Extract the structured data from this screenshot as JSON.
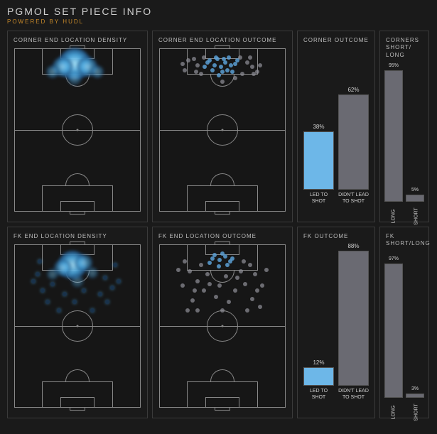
{
  "header": {
    "title": "PGMOL SET PIECE INFO",
    "subtitle": "POWERED BY HUDL"
  },
  "colors": {
    "page_bg": "#1a1a1a",
    "panel_border": "#3a3a3a",
    "pitch_line": "#888888",
    "text": "#cccccc",
    "accent": "#c88a2a",
    "bar_blue": "#6db7e8",
    "bar_grey": "#6a6a72",
    "glow_core": "#aee8ff",
    "glow_mid": "#4aa8e0",
    "glow_edge": "#1d4a78",
    "dot_blue": "#5a9fd4",
    "dot_grey": "#8a8a92"
  },
  "corner_density": {
    "title": "CORNER END LOCATION DENSITY",
    "type": "heatmap",
    "gradient": [
      [
        0.48,
        0.09,
        45,
        0.95
      ],
      [
        0.38,
        0.11,
        28,
        0.7
      ],
      [
        0.58,
        0.11,
        28,
        0.7
      ],
      [
        0.3,
        0.14,
        18,
        0.5
      ],
      [
        0.66,
        0.14,
        18,
        0.5
      ],
      [
        0.48,
        0.18,
        20,
        0.4
      ]
    ]
  },
  "corner_outcome_pitch": {
    "title": "CORNER END LOCATION OUTCOME",
    "type": "scatter",
    "blue_points": [
      [
        0.4,
        0.07
      ],
      [
        0.46,
        0.06
      ],
      [
        0.52,
        0.08
      ],
      [
        0.55,
        0.05
      ],
      [
        0.44,
        0.1
      ],
      [
        0.49,
        0.11
      ],
      [
        0.57,
        0.1
      ],
      [
        0.38,
        0.08
      ],
      [
        0.6,
        0.09
      ],
      [
        0.5,
        0.14
      ],
      [
        0.42,
        0.13
      ],
      [
        0.54,
        0.13
      ],
      [
        0.47,
        0.16
      ],
      [
        0.36,
        0.11
      ],
      [
        0.62,
        0.07
      ],
      [
        0.58,
        0.14
      ],
      [
        0.45,
        0.05
      ],
      [
        0.51,
        0.06
      ]
    ],
    "grey_points": [
      [
        0.23,
        0.07
      ],
      [
        0.3,
        0.1
      ],
      [
        0.7,
        0.08
      ],
      [
        0.74,
        0.11
      ],
      [
        0.2,
        0.13
      ],
      [
        0.78,
        0.14
      ],
      [
        0.33,
        0.15
      ],
      [
        0.66,
        0.15
      ],
      [
        0.27,
        0.06
      ],
      [
        0.72,
        0.05
      ],
      [
        0.18,
        0.09
      ],
      [
        0.8,
        0.1
      ],
      [
        0.35,
        0.05
      ],
      [
        0.64,
        0.05
      ],
      [
        0.29,
        0.14
      ],
      [
        0.75,
        0.15
      ],
      [
        0.5,
        0.2
      ],
      [
        0.6,
        0.18
      ]
    ]
  },
  "corner_outcome_bar": {
    "title": "CORNER OUTCOME",
    "type": "bar",
    "ylim": [
      0,
      100
    ],
    "bars": [
      {
        "label": "LED TO SHOT",
        "value": 38,
        "text": "38%",
        "color": "#6db7e8"
      },
      {
        "label": "DIDN'T LEAD TO SHOT",
        "value": 62,
        "text": "62%",
        "color": "#6a6a72"
      }
    ]
  },
  "corner_short_long": {
    "title": "CORNERS SHORT/ LONG",
    "type": "bar",
    "ylim": [
      0,
      100
    ],
    "bars": [
      {
        "label": "LONG",
        "value": 95,
        "text": "95%",
        "color": "#6a6a72"
      },
      {
        "label": "SHORT",
        "value": 5,
        "text": "5%",
        "color": "#6a6a72"
      }
    ]
  },
  "fk_density": {
    "title": "FK END LOCATION DENSITY",
    "type": "heatmap",
    "gradient": [
      [
        0.46,
        0.12,
        40,
        0.9
      ],
      [
        0.38,
        0.14,
        24,
        0.6
      ],
      [
        0.55,
        0.11,
        24,
        0.6
      ],
      [
        0.3,
        0.18,
        16,
        0.4
      ],
      [
        0.62,
        0.17,
        16,
        0.4
      ],
      [
        0.5,
        0.22,
        18,
        0.35
      ]
    ],
    "spread_points": [
      [
        0.18,
        0.18
      ],
      [
        0.22,
        0.28
      ],
      [
        0.3,
        0.24
      ],
      [
        0.72,
        0.2
      ],
      [
        0.78,
        0.26
      ],
      [
        0.68,
        0.3
      ],
      [
        0.4,
        0.3
      ],
      [
        0.55,
        0.28
      ],
      [
        0.26,
        0.35
      ],
      [
        0.74,
        0.35
      ],
      [
        0.48,
        0.35
      ],
      [
        0.35,
        0.4
      ],
      [
        0.62,
        0.4
      ],
      [
        0.2,
        0.1
      ],
      [
        0.8,
        0.12
      ],
      [
        0.15,
        0.22
      ],
      [
        0.83,
        0.22
      ]
    ]
  },
  "fk_outcome_pitch": {
    "title": "FK END LOCATION OUTCOME",
    "type": "scatter",
    "blue_points": [
      [
        0.44,
        0.06
      ],
      [
        0.48,
        0.09
      ],
      [
        0.52,
        0.07
      ],
      [
        0.56,
        0.1
      ],
      [
        0.4,
        0.11
      ],
      [
        0.47,
        0.13
      ],
      [
        0.54,
        0.12
      ],
      [
        0.5,
        0.05
      ],
      [
        0.42,
        0.08
      ],
      [
        0.58,
        0.08
      ]
    ],
    "grey_points": [
      [
        0.2,
        0.1
      ],
      [
        0.24,
        0.16
      ],
      [
        0.3,
        0.22
      ],
      [
        0.72,
        0.12
      ],
      [
        0.76,
        0.18
      ],
      [
        0.68,
        0.24
      ],
      [
        0.35,
        0.28
      ],
      [
        0.6,
        0.28
      ],
      [
        0.26,
        0.34
      ],
      [
        0.74,
        0.33
      ],
      [
        0.45,
        0.32
      ],
      [
        0.55,
        0.35
      ],
      [
        0.18,
        0.25
      ],
      [
        0.82,
        0.25
      ],
      [
        0.4,
        0.24
      ],
      [
        0.62,
        0.2
      ],
      [
        0.5,
        0.4
      ],
      [
        0.3,
        0.4
      ],
      [
        0.7,
        0.4
      ],
      [
        0.15,
        0.15
      ],
      [
        0.85,
        0.15
      ],
      [
        0.38,
        0.18
      ],
      [
        0.65,
        0.16
      ],
      [
        0.28,
        0.28
      ],
      [
        0.78,
        0.28
      ],
      [
        0.48,
        0.25
      ],
      [
        0.53,
        0.19
      ],
      [
        0.33,
        0.12
      ],
      [
        0.67,
        0.1
      ],
      [
        0.22,
        0.4
      ],
      [
        0.8,
        0.38
      ]
    ]
  },
  "fk_outcome_bar": {
    "title": "FK OUTCOME",
    "type": "bar",
    "ylim": [
      0,
      100
    ],
    "bars": [
      {
        "label": "LED TO SHOT",
        "value": 12,
        "text": "12%",
        "color": "#6db7e8"
      },
      {
        "label": "DIDN'T LEAD TO SHOT",
        "value": 88,
        "text": "88%",
        "color": "#6a6a72"
      }
    ]
  },
  "fk_short_long": {
    "title": "FK SHORT/LONG",
    "type": "bar",
    "ylim": [
      0,
      100
    ],
    "bars": [
      {
        "label": "LONG",
        "value": 97,
        "text": "97%",
        "color": "#6a6a72"
      },
      {
        "label": "SHORT",
        "value": 3,
        "text": "3%",
        "color": "#6a6a72"
      }
    ]
  }
}
